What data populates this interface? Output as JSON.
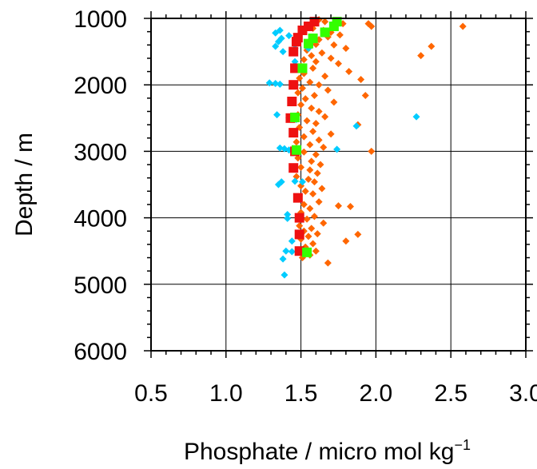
{
  "chart_data": {
    "type": "scatter",
    "xlabel": "Phosphate / micro mol kg",
    "xlabel_superscript": "−1",
    "ylabel": "Depth / m",
    "xlim": [
      0.5,
      3.0
    ],
    "ylim": [
      1000,
      6000
    ],
    "y_inverted": true,
    "grid": true,
    "x_ticks": [
      0.5,
      1.0,
      1.5,
      2.0,
      2.5,
      3.0
    ],
    "x_tick_labels": [
      "0.5",
      "1.0",
      "1.5",
      "2.0",
      "2.5",
      "3.0"
    ],
    "y_ticks": [
      1000,
      2000,
      3000,
      4000,
      5000,
      6000
    ],
    "y_tick_labels": [
      "1000",
      "2000",
      "3000",
      "4000",
      "5000",
      "6000"
    ],
    "series": [
      {
        "color": "#ff6600",
        "marker": "diamond",
        "points": [
          [
            1.62,
            1020
          ],
          [
            1.66,
            1050
          ],
          [
            1.72,
            1070
          ],
          [
            1.78,
            1080
          ],
          [
            1.95,
            1080
          ],
          [
            1.97,
            1120
          ],
          [
            2.58,
            1120
          ],
          [
            1.58,
            1150
          ],
          [
            1.65,
            1180
          ],
          [
            1.7,
            1210
          ],
          [
            1.76,
            1250
          ],
          [
            1.68,
            1280
          ],
          [
            1.62,
            1320
          ],
          [
            1.55,
            1360
          ],
          [
            1.6,
            1390
          ],
          [
            1.72,
            1400
          ],
          [
            2.37,
            1420
          ],
          [
            1.8,
            1450
          ],
          [
            1.54,
            1480
          ],
          [
            1.64,
            1520
          ],
          [
            2.3,
            1560
          ],
          [
            1.57,
            1560
          ],
          [
            1.7,
            1600
          ],
          [
            1.52,
            1620
          ],
          [
            1.6,
            1650
          ],
          [
            1.75,
            1680
          ],
          [
            1.5,
            1720
          ],
          [
            1.58,
            1750
          ],
          [
            1.82,
            1800
          ],
          [
            1.52,
            1830
          ],
          [
            1.66,
            1870
          ],
          [
            1.49,
            1900
          ],
          [
            1.9,
            1920
          ],
          [
            1.56,
            1960
          ],
          [
            1.62,
            2000
          ],
          [
            1.51,
            2050
          ],
          [
            1.68,
            2080
          ],
          [
            1.48,
            2120
          ],
          [
            1.59,
            2160
          ],
          [
            1.93,
            2160
          ],
          [
            1.53,
            2210
          ],
          [
            1.72,
            2260
          ],
          [
            1.5,
            2300
          ],
          [
            1.57,
            2350
          ],
          [
            1.62,
            2400
          ],
          [
            1.48,
            2450
          ],
          [
            1.66,
            2480
          ],
          [
            1.54,
            2540
          ],
          [
            1.6,
            2580
          ],
          [
            1.88,
            2600
          ],
          [
            1.49,
            2640
          ],
          [
            1.58,
            2700
          ],
          [
            1.7,
            2740
          ],
          [
            1.52,
            2780
          ],
          [
            1.62,
            2830
          ],
          [
            1.47,
            2860
          ],
          [
            1.56,
            2900
          ],
          [
            1.65,
            2940
          ],
          [
            1.97,
            3000
          ],
          [
            1.52,
            3010
          ],
          [
            1.6,
            3050
          ],
          [
            1.48,
            3100
          ],
          [
            1.57,
            3150
          ],
          [
            1.63,
            3200
          ],
          [
            1.5,
            3240
          ],
          [
            1.56,
            3280
          ],
          [
            1.61,
            3330
          ],
          [
            1.47,
            3380
          ],
          [
            1.55,
            3420
          ],
          [
            1.59,
            3460
          ],
          [
            1.5,
            3520
          ],
          [
            1.64,
            3560
          ],
          [
            1.53,
            3600
          ],
          [
            1.58,
            3640
          ],
          [
            1.48,
            3700
          ],
          [
            1.62,
            3760
          ],
          [
            1.52,
            3800
          ],
          [
            1.75,
            3820
          ],
          [
            1.83,
            3830
          ],
          [
            1.56,
            3860
          ],
          [
            1.5,
            3920
          ],
          [
            1.59,
            3980
          ],
          [
            1.54,
            4020
          ],
          [
            1.65,
            4080
          ],
          [
            1.49,
            4120
          ],
          [
            1.57,
            4160
          ],
          [
            1.52,
            4200
          ],
          [
            1.61,
            4240
          ],
          [
            1.88,
            4250
          ],
          [
            1.55,
            4280
          ],
          [
            1.5,
            4320
          ],
          [
            1.8,
            4350
          ],
          [
            1.58,
            4390
          ],
          [
            1.53,
            4440
          ],
          [
            1.6,
            4500
          ],
          [
            1.56,
            4560
          ],
          [
            1.51,
            4600
          ],
          [
            1.68,
            4680
          ]
        ]
      },
      {
        "color": "#00ccff",
        "marker": "diamond",
        "points": [
          [
            1.55,
            1100
          ],
          [
            1.36,
            1180
          ],
          [
            1.33,
            1220
          ],
          [
            1.42,
            1260
          ],
          [
            1.37,
            1300
          ],
          [
            1.35,
            1350
          ],
          [
            1.33,
            1420
          ],
          [
            1.46,
            1450
          ],
          [
            1.38,
            1500
          ],
          [
            1.55,
            1450
          ],
          [
            1.46,
            1650
          ],
          [
            1.29,
            1970
          ],
          [
            1.33,
            1980
          ],
          [
            1.36,
            1990
          ],
          [
            1.45,
            2000
          ],
          [
            1.34,
            2450
          ],
          [
            1.42,
            2500
          ],
          [
            1.47,
            2520
          ],
          [
            1.87,
            2620
          ],
          [
            2.27,
            2480
          ],
          [
            1.36,
            2950
          ],
          [
            1.39,
            2960
          ],
          [
            1.42,
            2980
          ],
          [
            1.46,
            3000
          ],
          [
            1.74,
            2970
          ],
          [
            1.37,
            3460
          ],
          [
            1.35,
            3500
          ],
          [
            1.46,
            3450
          ],
          [
            1.51,
            3460
          ],
          [
            1.41,
            3950
          ],
          [
            1.41,
            4010
          ],
          [
            1.49,
            3980
          ],
          [
            1.44,
            4350
          ],
          [
            1.4,
            4500
          ],
          [
            1.44,
            4510
          ],
          [
            1.38,
            4620
          ],
          [
            1.39,
            4860
          ]
        ]
      },
      {
        "color": "#ee1111",
        "marker": "square",
        "points": [
          [
            1.59,
            1050
          ],
          [
            1.55,
            1120
          ],
          [
            1.51,
            1180
          ],
          [
            1.48,
            1290
          ],
          [
            1.47,
            1350
          ],
          [
            1.45,
            1500
          ],
          [
            1.46,
            1750
          ],
          [
            1.45,
            2000
          ],
          [
            1.44,
            2250
          ],
          [
            1.43,
            2500
          ],
          [
            1.45,
            2720
          ],
          [
            1.46,
            3000
          ],
          [
            1.45,
            3250
          ],
          [
            1.48,
            3700
          ],
          [
            1.49,
            4000
          ],
          [
            1.49,
            4250
          ],
          [
            1.49,
            4500
          ]
        ]
      },
      {
        "color": "#33ff00",
        "marker": "square",
        "points": [
          [
            1.74,
            1050
          ],
          [
            1.72,
            1120
          ],
          [
            1.66,
            1210
          ],
          [
            1.58,
            1300
          ],
          [
            1.55,
            1380
          ],
          [
            1.51,
            1750
          ],
          [
            1.46,
            2490
          ],
          [
            1.47,
            2980
          ],
          [
            1.54,
            4520
          ]
        ]
      }
    ]
  }
}
